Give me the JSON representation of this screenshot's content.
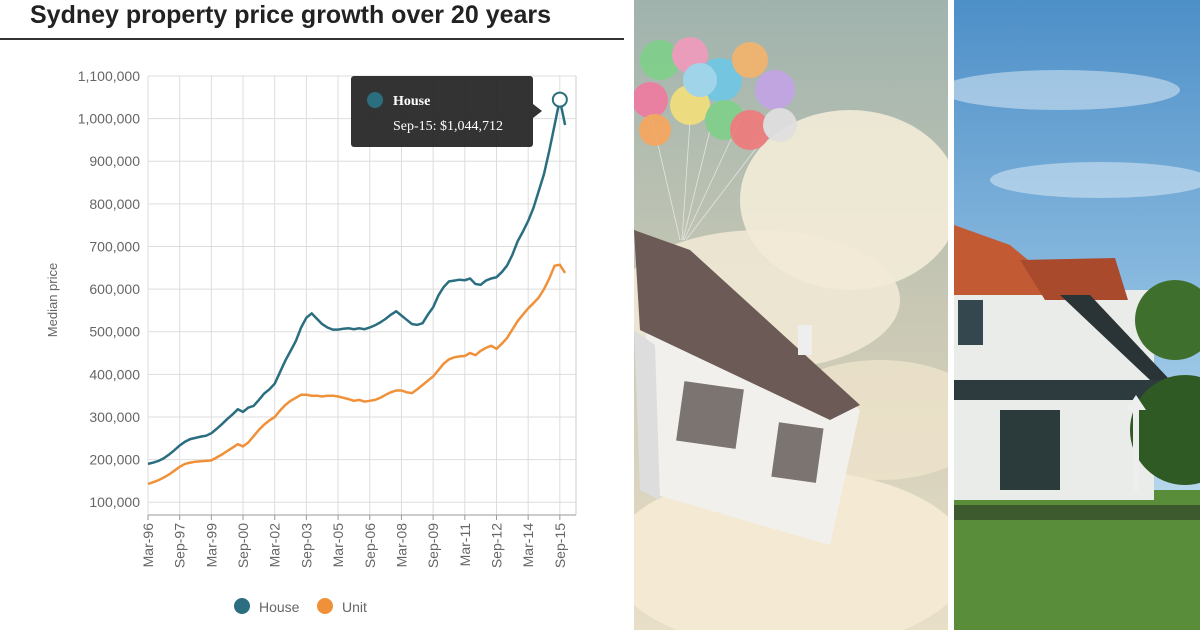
{
  "chart_data": {
    "type": "line",
    "title": "Sydney property price growth over 20 years",
    "ylabel": "Median price",
    "categories": [
      "Mar-96",
      null,
      null,
      null,
      null,
      null,
      "Sep-97",
      null,
      null,
      null,
      null,
      null,
      "Mar-99",
      null,
      null,
      null,
      null,
      null,
      "Sep-00",
      null,
      null,
      null,
      null,
      null,
      "Mar-02",
      null,
      null,
      null,
      null,
      null,
      "Sep-03",
      null,
      null,
      null,
      null,
      null,
      "Mar-05",
      null,
      null,
      null,
      null,
      null,
      "Sep-06",
      null,
      null,
      null,
      null,
      null,
      "Mar-08",
      null,
      null,
      null,
      null,
      null,
      "Sep-09",
      null,
      null,
      null,
      null,
      null,
      "Mar-11",
      null,
      null,
      null,
      null,
      null,
      "Sep-12",
      null,
      null,
      null,
      null,
      null,
      "Mar-14",
      null,
      null,
      null,
      null,
      null,
      "Sep-15",
      null
    ],
    "series": [
      {
        "name": "House",
        "color": "#2a6e80",
        "values": [
          190000,
          193000,
          197000,
          203000,
          212000,
          222000,
          233000,
          242000,
          248000,
          251000,
          254000,
          256000,
          262000,
          272000,
          283000,
          295000,
          306000,
          318000,
          312000,
          322000,
          326000,
          340000,
          355000,
          365000,
          378000,
          405000,
          432000,
          455000,
          478000,
          510000,
          533000,
          543000,
          530000,
          518000,
          510000,
          505000,
          505000,
          507000,
          508000,
          506000,
          508000,
          506000,
          510000,
          515000,
          522000,
          530000,
          540000,
          548000,
          538000,
          528000,
          518000,
          516000,
          520000,
          540000,
          557000,
          585000,
          605000,
          618000,
          620000,
          622000,
          621000,
          625000,
          612000,
          610000,
          620000,
          625000,
          628000,
          640000,
          655000,
          680000,
          712000,
          735000,
          760000,
          790000,
          830000,
          870000,
          925000,
          985000,
          1044712,
          985000
        ]
      },
      {
        "name": "Unit",
        "color": "#f0913a",
        "values": [
          143000,
          147000,
          152000,
          158000,
          165000,
          174000,
          183000,
          190000,
          193000,
          195000,
          196000,
          197000,
          198000,
          205000,
          212000,
          220000,
          228000,
          236000,
          231000,
          240000,
          255000,
          270000,
          282000,
          292000,
          300000,
          315000,
          328000,
          338000,
          345000,
          352000,
          352000,
          350000,
          350000,
          348000,
          350000,
          350000,
          348000,
          345000,
          342000,
          338000,
          340000,
          336000,
          338000,
          340000,
          345000,
          352000,
          358000,
          362000,
          362000,
          358000,
          356000,
          365000,
          375000,
          385000,
          395000,
          410000,
          425000,
          435000,
          440000,
          442000,
          443000,
          450000,
          445000,
          455000,
          462000,
          467000,
          460000,
          472000,
          485000,
          505000,
          525000,
          540000,
          555000,
          567000,
          580000,
          600000,
          625000,
          655000,
          657000,
          638000
        ]
      }
    ],
    "ylim": [
      70000,
      1100000
    ],
    "yticks": [
      {
        "value": 100000,
        "label": "100,000"
      },
      {
        "value": 200000,
        "label": "200,000"
      },
      {
        "value": 300000,
        "label": "300,000"
      },
      {
        "value": 400000,
        "label": "400,000"
      },
      {
        "value": 500000,
        "label": "500,000"
      },
      {
        "value": 600000,
        "label": "600,000"
      },
      {
        "value": 700000,
        "label": "700,000"
      },
      {
        "value": 800000,
        "label": "800,000"
      },
      {
        "value": 900000,
        "label": "900,000"
      },
      {
        "value": 1000000,
        "label": "1,000,000"
      },
      {
        "value": 1100000,
        "label": "1,100,000"
      }
    ],
    "grid": true,
    "tooltip": {
      "series": 0,
      "index": 78,
      "text": "Sep-15: $1,044,712"
    }
  }
}
